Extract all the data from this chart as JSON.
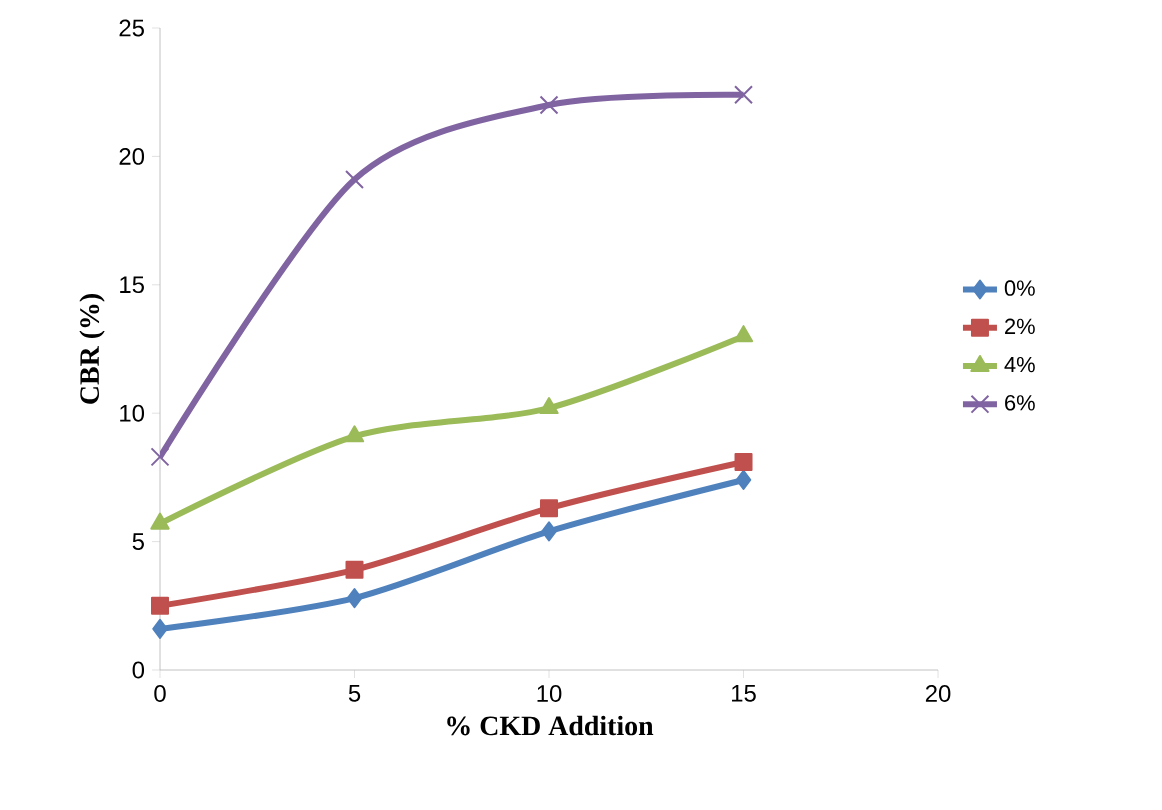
{
  "chart_data": {
    "type": "line",
    "xlabel": "% CKD Addition",
    "ylabel": "CBR (%)",
    "x": [
      0,
      5,
      10,
      15
    ],
    "series": [
      {
        "name": "0%",
        "color": "#4f81bd",
        "marker": "diamond",
        "values": [
          1.6,
          2.8,
          5.4,
          7.4
        ]
      },
      {
        "name": "2%",
        "color": "#c0504d",
        "marker": "square",
        "values": [
          2.5,
          3.9,
          6.3,
          8.1
        ]
      },
      {
        "name": "4%",
        "color": "#9bbb59",
        "marker": "triangle",
        "values": [
          5.7,
          9.1,
          10.2,
          13.0
        ]
      },
      {
        "name": "6%",
        "color": "#8064a2",
        "marker": "cross",
        "values": [
          8.3,
          19.1,
          22.0,
          22.4
        ]
      }
    ],
    "xlim": [
      0,
      20
    ],
    "xticks": [
      0,
      5,
      10,
      15,
      20
    ],
    "ylim": [
      0,
      25
    ],
    "yticks": [
      0,
      5,
      10,
      15,
      20,
      25
    ],
    "grid": false,
    "legend": "right",
    "line_style": "solid"
  }
}
